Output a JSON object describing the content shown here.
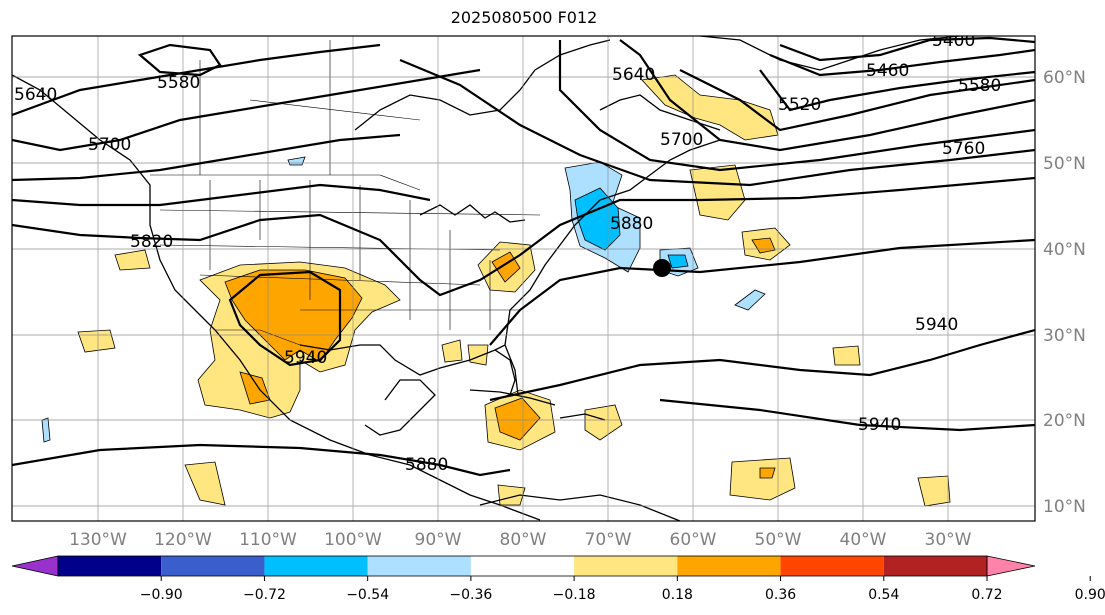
{
  "title": "2025080500 F012",
  "lon_labels": [
    "130°W",
    "120°W",
    "110°W",
    "100°W",
    "90°W",
    "80°W",
    "70°W",
    "60°W",
    "50°W",
    "40°W",
    "30°W"
  ],
  "lat_labels": [
    "60°N",
    "50°N",
    "40°N",
    "30°N",
    "20°N",
    "10°N"
  ],
  "contour_labels": [
    "5400",
    "5460",
    "5580",
    "5760",
    "5880",
    "5820",
    "5940",
    "5940",
    "5940",
    "5880",
    "5580",
    "5640",
    "5640",
    "5700",
    "5520",
    "5700"
  ],
  "colorbar": {
    "ticks": [
      "−0.90",
      "−0.72",
      "−0.54",
      "−0.36",
      "−0.18",
      "0.18",
      "0.36",
      "0.54",
      "0.72",
      "0.90"
    ],
    "colors": [
      "#9932CC",
      "#00008B",
      "#3A5FCD",
      "#00BFFF",
      "#ADDFFF",
      "#FFFFFF",
      "#FFE680",
      "#FFA500",
      "#FF4500",
      "#B22222",
      "#FF82AB"
    ]
  },
  "marker": "storm-center-dot"
}
